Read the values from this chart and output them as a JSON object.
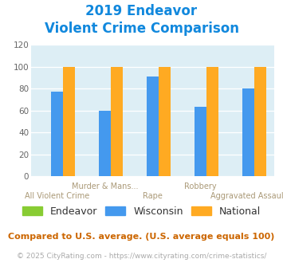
{
  "title_line1": "2019 Endeavor",
  "title_line2": "Violent Crime Comparison",
  "categories_upper": [
    "",
    "Murder & Mans...",
    "",
    "Robbery",
    ""
  ],
  "categories_lower": [
    "All Violent Crime",
    "",
    "Rape",
    "",
    "Aggravated Assault"
  ],
  "series": {
    "Endeavor": [
      0,
      0,
      0,
      0,
      0
    ],
    "Wisconsin": [
      77,
      60,
      91,
      63,
      80
    ],
    "National": [
      100,
      100,
      100,
      100,
      100
    ]
  },
  "colors": {
    "Endeavor": "#88cc33",
    "Wisconsin": "#4499ee",
    "National": "#ffaa22"
  },
  "ylim": [
    0,
    120
  ],
  "yticks": [
    0,
    20,
    40,
    60,
    80,
    100,
    120
  ],
  "plot_bg": "#ddeef5",
  "fig_bg": "#ffffff",
  "title_color": "#1188dd",
  "xlabel_upper_color": "#aa9977",
  "xlabel_lower_color": "#aa9977",
  "footer_text": "Compared to U.S. average. (U.S. average equals 100)",
  "footer_color": "#cc6600",
  "credit_text": "© 2025 CityRating.com - https://www.cityrating.com/crime-statistics/",
  "credit_color": "#aaaaaa",
  "title_fontsize": 12,
  "tick_fontsize": 7.5,
  "legend_fontsize": 9,
  "footer_fontsize": 8,
  "credit_fontsize": 6.5
}
